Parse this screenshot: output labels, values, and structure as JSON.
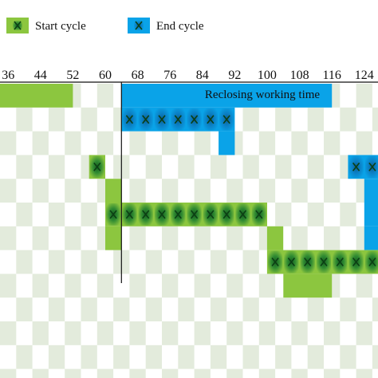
{
  "chart_data": {
    "type": "heatmap",
    "x_ticks": [
      "36",
      "44",
      "52",
      "60",
      "68",
      "76",
      "84",
      "92",
      "100",
      "108",
      "116",
      "124"
    ],
    "cell_width_units": 4,
    "visible_x_range": [
      34,
      128
    ],
    "visible_row_range": [
      1,
      13
    ],
    "legend": [
      {
        "name": "Start cycle",
        "color": "#8cc63f"
      },
      {
        "name": "End cycle",
        "color": "#0aa3e8"
      }
    ],
    "marker_color": "#1b7a2a",
    "checker_color": "#e3ebdc",
    "annotation": "Reclosing working time",
    "divider_x": 64,
    "blocks": [
      {
        "group": "start",
        "row": 1,
        "x_start": 34,
        "x_end": 52
      },
      {
        "group": "end",
        "row": 1,
        "x_start": 64,
        "x_end": 116
      },
      {
        "group": "end",
        "row": 2,
        "x_start": 64,
        "x_end": 92,
        "marked": true
      },
      {
        "group": "end",
        "row": 3,
        "x_start": 88,
        "x_end": 92
      },
      {
        "group": "start",
        "row": 4,
        "x_start": 56,
        "x_end": 60,
        "marked": true
      },
      {
        "group": "end",
        "row": 4,
        "x_start": 120,
        "x_end": 128,
        "marked": true
      },
      {
        "group": "start",
        "row": 5,
        "x_start": 60,
        "x_end": 64
      },
      {
        "group": "end",
        "row": 5,
        "x_start": 124,
        "x_end": 128
      },
      {
        "group": "start",
        "row": 6,
        "x_start": 60,
        "x_end": 100,
        "marked": true
      },
      {
        "group": "end",
        "row": 6,
        "x_start": 124,
        "x_end": 128
      },
      {
        "group": "start",
        "row": 7,
        "x_start": 60,
        "x_end": 64
      },
      {
        "group": "start",
        "row": 7,
        "x_start": 100,
        "x_end": 104
      },
      {
        "group": "end",
        "row": 7,
        "x_start": 124,
        "x_end": 128
      },
      {
        "group": "start",
        "row": 8,
        "x_start": 100,
        "x_end": 128,
        "marked": true
      },
      {
        "group": "start",
        "row": 9,
        "x_start": 104,
        "x_end": 116
      }
    ]
  }
}
